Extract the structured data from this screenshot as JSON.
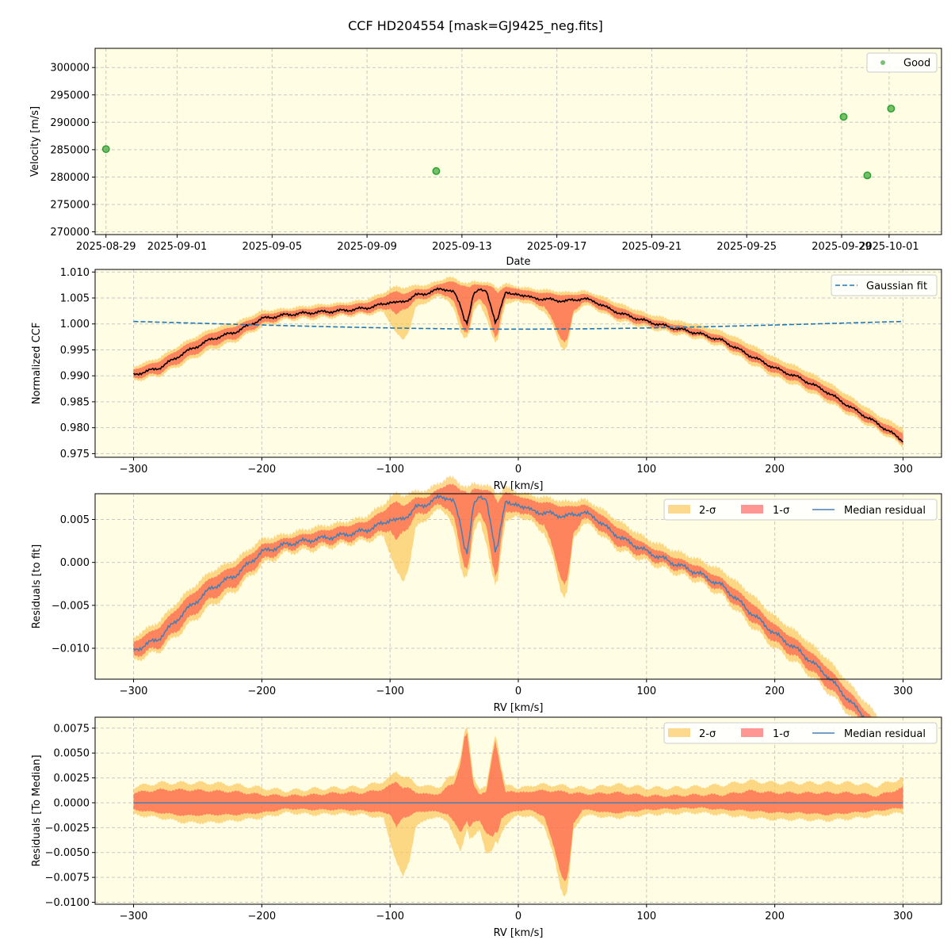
{
  "figure": {
    "title": "CCF HD204554 [mask=GJ9425_neg.fits]",
    "background": "#ffffff",
    "axes_facecolor": "#fffde3",
    "grid_color": "#c8c8c8"
  },
  "colors": {
    "good_points": "#2ca02c",
    "ccf_line": "#000000",
    "gaussian": "#1f77b4",
    "sigma2": "#fbc552",
    "sigma1": "#ff4040",
    "overlap": "#ff7f50",
    "median_residual": "#4a7fb2"
  },
  "chart_data": [
    {
      "type": "scatter",
      "xlabel": "Date",
      "ylabel": "Velocity [m/s]",
      "x_type": "date",
      "xlim": [
        "2025-08-28T13:00",
        "2025-10-03T05:00"
      ],
      "ylim": [
        269500,
        303500
      ],
      "xticks": [
        "2025-08-29",
        "2025-09-01",
        "2025-09-05",
        "2025-09-09",
        "2025-09-13",
        "2025-09-17",
        "2025-09-21",
        "2025-09-25",
        "2025-09-29",
        "2025-10-01"
      ],
      "yticks": [
        270000,
        275000,
        280000,
        285000,
        290000,
        295000,
        300000
      ],
      "legend": {
        "position": "upper-right",
        "entries": [
          "Good"
        ]
      },
      "series": [
        {
          "name": "Good",
          "x": [
            "2025-08-29T00:00",
            "2025-09-11T22:00",
            "2025-09-29T02:00",
            "2025-09-30T02:00",
            "2025-10-01T02:00"
          ],
          "y": [
            285100,
            281100,
            291000,
            280300,
            292500
          ]
        }
      ]
    },
    {
      "type": "line",
      "xlabel": "RV [km/s]",
      "ylabel": "Normalized CCF",
      "xlim": [
        -330,
        330
      ],
      "ylim": [
        0.9743,
        1.0105
      ],
      "xticks": [
        -300,
        -200,
        -100,
        0,
        100,
        200,
        300
      ],
      "yticks": [
        0.975,
        0.98,
        0.985,
        0.99,
        0.995,
        1.0,
        1.005,
        1.01
      ],
      "legend": {
        "position": "upper-right",
        "entries": [
          "Gaussian fit"
        ]
      },
      "x": [
        -300,
        -280,
        -260,
        -240,
        -220,
        -200,
        -180,
        -160,
        -140,
        -120,
        -105,
        -100,
        -95,
        -90,
        -85,
        -80,
        -70,
        -60,
        -55,
        -50,
        -45,
        -42,
        -40,
        -38,
        -35,
        -30,
        -25,
        -20,
        -18,
        -16,
        -13,
        -10,
        -5,
        0,
        5,
        10,
        20,
        28,
        33,
        36,
        38,
        40,
        43,
        50,
        60,
        70,
        80,
        100,
        120,
        140,
        160,
        180,
        200,
        220,
        240,
        260,
        280,
        300
      ],
      "median": [
        0.9902,
        0.9915,
        0.9945,
        0.997,
        0.9985,
        1.001,
        1.0018,
        1.0022,
        1.0025,
        1.003,
        1.0038,
        1.0043,
        1.004,
        1.0043,
        1.0048,
        1.0055,
        1.006,
        1.0068,
        1.0066,
        1.006,
        1.0035,
        1.001,
        1.0003,
        1.002,
        1.0055,
        1.0068,
        1.0065,
        1.002,
        1.0002,
        1.001,
        1.004,
        1.0062,
        1.0055,
        1.0058,
        1.0055,
        1.005,
        1.0048,
        1.0046,
        1.0045,
        1.0044,
        1.0044,
        1.0045,
        1.0046,
        1.0049,
        1.0043,
        1.003,
        1.002,
        1.0005,
        0.9993,
        0.9982,
        0.9967,
        0.994,
        0.9915,
        0.9895,
        0.987,
        0.9838,
        0.9808,
        0.9775
      ],
      "sigma1_lower": [
        0.9895,
        0.9905,
        0.9932,
        0.9958,
        0.9973,
        1.0,
        1.0012,
        1.0015,
        1.0018,
        1.0022,
        1.0028,
        1.0032,
        1.0015,
        1.0028,
        1.0035,
        1.0045,
        1.0052,
        1.0058,
        1.0055,
        1.004,
        1.0005,
        0.9988,
        0.9985,
        0.9995,
        1.0035,
        1.005,
        1.0035,
        0.9985,
        0.9972,
        0.998,
        1.0025,
        1.005,
        1.0045,
        1.005,
        1.0048,
        1.0042,
        1.0035,
        1.0,
        0.9975,
        0.9965,
        0.9968,
        0.9985,
        1.0025,
        1.0042,
        1.0035,
        1.002,
        1.001,
        0.9998,
        0.9987,
        0.9977,
        0.996,
        0.9932,
        0.9905,
        0.9885,
        0.9858,
        0.9828,
        0.98,
        0.977
      ],
      "sigma1_upper": [
        0.9912,
        0.9928,
        0.9958,
        0.9982,
        0.9996,
        1.0018,
        1.0025,
        1.003,
        1.0035,
        1.004,
        1.0052,
        1.006,
        1.0062,
        1.0058,
        1.0062,
        1.0066,
        1.0068,
        1.0078,
        1.0082,
        1.008,
        1.0075,
        1.0075,
        1.0072,
        1.007,
        1.0075,
        1.0076,
        1.0075,
        1.007,
        1.0065,
        1.006,
        1.0068,
        1.0072,
        1.0068,
        1.0068,
        1.0065,
        1.0062,
        1.006,
        1.0058,
        1.0056,
        1.0055,
        1.0055,
        1.0055,
        1.0056,
        1.0058,
        1.0052,
        1.004,
        1.003,
        1.0012,
        1.0,
        0.999,
        0.9975,
        0.9952,
        0.9925,
        0.9905,
        0.988,
        0.9848,
        0.9815,
        0.979
      ],
      "sigma2_lower": [
        0.989,
        0.99,
        0.9925,
        0.995,
        0.9967,
        0.9995,
        1.0008,
        1.001,
        1.0014,
        1.0018,
        1.0022,
        1.0005,
        0.998,
        0.9968,
        0.999,
        1.003,
        1.0045,
        1.0052,
        1.0048,
        1.0025,
        0.9985,
        0.9975,
        0.9978,
        0.9985,
        1.002,
        1.004,
        1.0015,
        0.9972,
        0.9962,
        0.9968,
        1.001,
        1.004,
        1.0038,
        1.0045,
        1.0042,
        1.0036,
        1.0026,
        0.999,
        0.996,
        0.995,
        0.9955,
        0.9975,
        1.0018,
        1.0036,
        1.003,
        1.0015,
        1.0005,
        0.9993,
        0.9982,
        0.9972,
        0.9955,
        0.9925,
        0.9898,
        0.9878,
        0.9852,
        0.9822,
        0.9795,
        0.9765
      ],
      "sigma2_upper": [
        0.9918,
        0.9935,
        0.9965,
        0.999,
        1.0003,
        1.0025,
        1.003,
        1.0036,
        1.004,
        1.0046,
        1.006,
        1.0068,
        1.0072,
        1.007,
        1.0072,
        1.0074,
        1.0076,
        1.0085,
        1.009,
        1.0088,
        1.0082,
        1.008,
        1.0078,
        1.0078,
        1.0082,
        1.0082,
        1.008,
        1.0076,
        1.0072,
        1.007,
        1.0074,
        1.0078,
        1.0074,
        1.0072,
        1.007,
        1.0068,
        1.0066,
        1.0064,
        1.0062,
        1.0061,
        1.0061,
        1.0061,
        1.0062,
        1.0064,
        1.0058,
        1.0048,
        1.0038,
        1.002,
        1.0008,
        0.9998,
        0.9985,
        0.9962,
        0.9935,
        0.9915,
        0.989,
        0.9858,
        0.9825,
        0.98
      ],
      "gaussian_fit": {
        "baseline": 1.0018,
        "amplitude": -0.0028,
        "center": 0,
        "sigma_kms": 245
      }
    },
    {
      "type": "area",
      "xlabel": "RV [km/s]",
      "ylabel": "Residuals [to fit]",
      "xlim": [
        -330,
        330
      ],
      "ylim": [
        -0.0136,
        0.008
      ],
      "xticks": [
        -300,
        -200,
        -100,
        0,
        100,
        200,
        300
      ],
      "yticks": [
        -0.01,
        -0.005,
        0.0,
        0.005
      ],
      "ytick_labels": [
        "−0.010",
        "−0.005",
        "0.000",
        "0.005"
      ],
      "legend": {
        "position": "upper-right",
        "entries": [
          "2-σ",
          "1-σ",
          "Median residual"
        ]
      },
      "residual_of": "panel2 minus gaussian_fit"
    },
    {
      "type": "area",
      "xlabel": "RV [km/s]",
      "ylabel": "Residuals [To Median]",
      "xlim": [
        -330,
        330
      ],
      "ylim": [
        -0.0102,
        0.0086
      ],
      "xticks": [
        -300,
        -200,
        -100,
        0,
        100,
        200,
        300
      ],
      "yticks": [
        -0.01,
        -0.0075,
        -0.005,
        -0.0025,
        0.0,
        0.0025,
        0.005,
        0.0075
      ],
      "ytick_labels": [
        "−0.0100",
        "−0.0075",
        "−0.0050",
        "−0.0025",
        "0.0000",
        "0.0025",
        "0.0050",
        "0.0075"
      ],
      "legend": {
        "position": "upper-right",
        "entries": [
          "2-σ",
          "1-σ",
          "Median residual"
        ]
      },
      "residual_of": "panel2 minus median"
    }
  ],
  "rv_tick_labels": [
    "−300",
    "−200",
    "−100",
    "0",
    "100",
    "200",
    "300"
  ]
}
